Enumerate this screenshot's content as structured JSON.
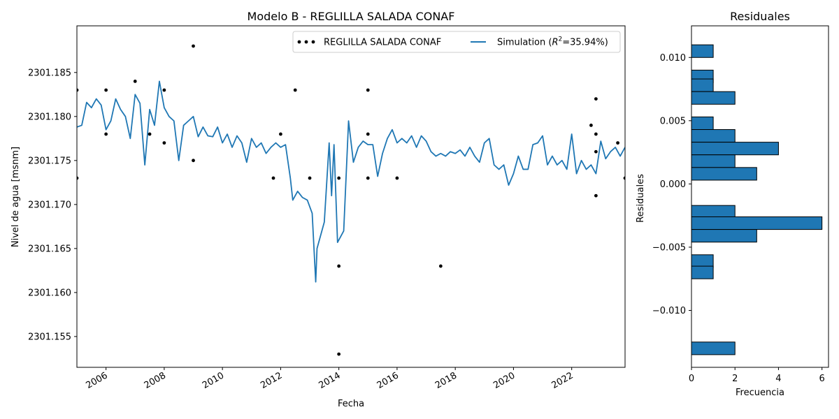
{
  "chart_data": [
    {
      "type": "line",
      "title": "Modelo B - REGLILLA SALADA CONAF",
      "xlabel": "Fecha",
      "ylabel": "Nivel de agua [msnm]",
      "xlim": [
        "2005-01-01",
        "2023-11-01"
      ],
      "ylim": [
        2301.1515,
        2301.1903
      ],
      "x_ticks": [
        "2006",
        "2008",
        "2010",
        "2012",
        "2014",
        "2016",
        "2018",
        "2020",
        "2022"
      ],
      "y_ticks": [
        "2301.155",
        "2301.160",
        "2301.165",
        "2301.170",
        "2301.175",
        "2301.180",
        "2301.185"
      ],
      "legend": {
        "placement": "top-right",
        "entries": [
          {
            "label": "REGLILLA SALADA CONAF",
            "marker": "dot",
            "color": "#000000"
          },
          {
            "label_prefix": "Simulation (",
            "label_math": "R",
            "label_sup": "2",
            "label_suffix": "=35.94%)",
            "color": "#1f77b4"
          }
        ]
      },
      "series": [
        {
          "name": "REGLILLA SALADA CONAF",
          "kind": "scatter",
          "color": "#000000",
          "points": [
            {
              "x": "2005-01-01",
              "y": 2301.183
            },
            {
              "x": "2005-01-01",
              "y": 2301.173
            },
            {
              "x": "2006-01-01",
              "y": 2301.183
            },
            {
              "x": "2006-01-01",
              "y": 2301.178
            },
            {
              "x": "2007-01-01",
              "y": 2301.184
            },
            {
              "x": "2007-07-01",
              "y": 2301.178
            },
            {
              "x": "2008-01-01",
              "y": 2301.183
            },
            {
              "x": "2008-01-01",
              "y": 2301.177
            },
            {
              "x": "2009-01-01",
              "y": 2301.188
            },
            {
              "x": "2009-01-01",
              "y": 2301.175
            },
            {
              "x": "2011-10-01",
              "y": 2301.173
            },
            {
              "x": "2012-01-01",
              "y": 2301.178
            },
            {
              "x": "2012-07-01",
              "y": 2301.183
            },
            {
              "x": "2013-01-01",
              "y": 2301.173
            },
            {
              "x": "2014-01-01",
              "y": 2301.173
            },
            {
              "x": "2014-01-01",
              "y": 2301.163
            },
            {
              "x": "2014-01-01",
              "y": 2301.153
            },
            {
              "x": "2015-01-01",
              "y": 2301.183
            },
            {
              "x": "2015-01-01",
              "y": 2301.178
            },
            {
              "x": "2015-01-01",
              "y": 2301.173
            },
            {
              "x": "2016-01-01",
              "y": 2301.173
            },
            {
              "x": "2017-07-01",
              "y": 2301.163
            },
            {
              "x": "2022-09-01",
              "y": 2301.179
            },
            {
              "x": "2022-11-01",
              "y": 2301.182
            },
            {
              "x": "2022-11-01",
              "y": 2301.178
            },
            {
              "x": "2022-11-01",
              "y": 2301.176
            },
            {
              "x": "2022-11-01",
              "y": 2301.171
            },
            {
              "x": "2023-08-01",
              "y": 2301.177
            },
            {
              "x": "2023-11-01",
              "y": 2301.173
            }
          ]
        },
        {
          "name": "Simulation",
          "kind": "line",
          "color": "#1f77b4",
          "points": [
            [
              "2005-01-01",
              2301.1788
            ],
            [
              "2005-03-01",
              2301.179
            ],
            [
              "2005-05-01",
              2301.1816
            ],
            [
              "2005-07-01",
              2301.181
            ],
            [
              "2005-09-01",
              2301.182
            ],
            [
              "2005-11-01",
              2301.1813
            ],
            [
              "2006-01-01",
              2301.1785
            ],
            [
              "2006-03-01",
              2301.1795
            ],
            [
              "2006-05-01",
              2301.182
            ],
            [
              "2006-07-01",
              2301.1808
            ],
            [
              "2006-09-01",
              2301.18
            ],
            [
              "2006-11-01",
              2301.1775
            ],
            [
              "2007-01-01",
              2301.1825
            ],
            [
              "2007-03-01",
              2301.1815
            ],
            [
              "2007-05-01",
              2301.1745
            ],
            [
              "2007-07-01",
              2301.1808
            ],
            [
              "2007-09-01",
              2301.179
            ],
            [
              "2007-11-01",
              2301.184
            ],
            [
              "2008-01-01",
              2301.181
            ],
            [
              "2008-03-01",
              2301.18
            ],
            [
              "2008-05-01",
              2301.1795
            ],
            [
              "2008-07-01",
              2301.175
            ],
            [
              "2008-09-01",
              2301.179
            ],
            [
              "2008-11-01",
              2301.1795
            ],
            [
              "2009-01-01",
              2301.18
            ],
            [
              "2009-03-01",
              2301.1777
            ],
            [
              "2009-05-01",
              2301.1788
            ],
            [
              "2009-07-01",
              2301.1778
            ],
            [
              "2009-09-01",
              2301.1777
            ],
            [
              "2009-11-01",
              2301.1788
            ],
            [
              "2010-01-01",
              2301.177
            ],
            [
              "2010-03-01",
              2301.178
            ],
            [
              "2010-05-01",
              2301.1765
            ],
            [
              "2010-07-01",
              2301.1778
            ],
            [
              "2010-09-01",
              2301.177
            ],
            [
              "2010-11-01",
              2301.1748
            ],
            [
              "2011-01-01",
              2301.1775
            ],
            [
              "2011-03-01",
              2301.1765
            ],
            [
              "2011-05-01",
              2301.177
            ],
            [
              "2011-07-01",
              2301.1758
            ],
            [
              "2011-09-01",
              2301.1765
            ],
            [
              "2011-11-01",
              2301.177
            ],
            [
              "2012-01-01",
              2301.1765
            ],
            [
              "2012-03-01",
              2301.1768
            ],
            [
              "2012-05-01",
              2301.173
            ],
            [
              "2012-06-01",
              2301.1705
            ],
            [
              "2012-08-01",
              2301.1715
            ],
            [
              "2012-10-01",
              2301.1708
            ],
            [
              "2012-12-01",
              2301.1705
            ],
            [
              "2013-02-01",
              2301.169
            ],
            [
              "2013-03-15",
              2301.1612
            ],
            [
              "2013-04-01",
              2301.165
            ],
            [
              "2013-07-01",
              2301.168
            ],
            [
              "2013-09-01",
              2301.177
            ],
            [
              "2013-10-01",
              2301.171
            ],
            [
              "2013-11-01",
              2301.1768
            ],
            [
              "2013-12-15",
              2301.1657
            ],
            [
              "2014-03-01",
              2301.167
            ],
            [
              "2014-05-01",
              2301.1795
            ],
            [
              "2014-07-01",
              2301.1748
            ],
            [
              "2014-09-01",
              2301.1765
            ],
            [
              "2014-11-01",
              2301.1772
            ],
            [
              "2015-01-01",
              2301.1768
            ],
            [
              "2015-03-01",
              2301.1768
            ],
            [
              "2015-05-01",
              2301.1732
            ],
            [
              "2015-07-01",
              2301.1758
            ],
            [
              "2015-09-01",
              2301.1775
            ],
            [
              "2015-11-01",
              2301.1785
            ],
            [
              "2016-01-01",
              2301.177
            ],
            [
              "2016-03-01",
              2301.1775
            ],
            [
              "2016-05-01",
              2301.177
            ],
            [
              "2016-07-01",
              2301.1778
            ],
            [
              "2016-09-01",
              2301.1765
            ],
            [
              "2016-11-01",
              2301.1778
            ],
            [
              "2017-01-01",
              2301.1772
            ],
            [
              "2017-03-01",
              2301.176
            ],
            [
              "2017-05-01",
              2301.1755
            ],
            [
              "2017-07-01",
              2301.1758
            ],
            [
              "2017-09-01",
              2301.1755
            ],
            [
              "2017-11-01",
              2301.176
            ],
            [
              "2018-01-01",
              2301.1758
            ],
            [
              "2018-03-01",
              2301.1762
            ],
            [
              "2018-05-01",
              2301.1755
            ],
            [
              "2018-07-01",
              2301.1765
            ],
            [
              "2018-09-01",
              2301.1755
            ],
            [
              "2018-11-01",
              2301.1748
            ],
            [
              "2019-01-01",
              2301.177
            ],
            [
              "2019-03-01",
              2301.1775
            ],
            [
              "2019-05-01",
              2301.1745
            ],
            [
              "2019-07-01",
              2301.174
            ],
            [
              "2019-09-01",
              2301.1745
            ],
            [
              "2019-11-01",
              2301.1722
            ],
            [
              "2020-01-01",
              2301.1735
            ],
            [
              "2020-03-01",
              2301.1755
            ],
            [
              "2020-05-01",
              2301.174
            ],
            [
              "2020-07-01",
              2301.174
            ],
            [
              "2020-09-01",
              2301.1768
            ],
            [
              "2020-11-01",
              2301.177
            ],
            [
              "2021-01-01",
              2301.1778
            ],
            [
              "2021-03-01",
              2301.1745
            ],
            [
              "2021-05-01",
              2301.1755
            ],
            [
              "2021-07-01",
              2301.1745
            ],
            [
              "2021-09-01",
              2301.175
            ],
            [
              "2021-11-01",
              2301.174
            ],
            [
              "2022-01-01",
              2301.178
            ],
            [
              "2022-03-01",
              2301.1735
            ],
            [
              "2022-05-01",
              2301.175
            ],
            [
              "2022-07-01",
              2301.174
            ],
            [
              "2022-09-01",
              2301.1745
            ],
            [
              "2022-11-01",
              2301.1735
            ],
            [
              "2023-01-01",
              2301.1772
            ],
            [
              "2023-03-01",
              2301.1752
            ],
            [
              "2023-05-01",
              2301.176
            ],
            [
              "2023-07-01",
              2301.1765
            ],
            [
              "2023-09-01",
              2301.1755
            ],
            [
              "2023-11-01",
              2301.1765
            ]
          ]
        }
      ]
    },
    {
      "type": "bar",
      "orientation": "horizontal",
      "title": "Residuales",
      "xlabel": "Frecuencia",
      "ylabel": "Residuales",
      "xlim": [
        0,
        6.3
      ],
      "ylim": [
        -0.0145,
        0.0125
      ],
      "x_ticks": [
        "0",
        "2",
        "4",
        "6"
      ],
      "y_ticks": [
        {
          "value": 0.01,
          "label": "0.010"
        },
        {
          "value": 0.005,
          "label": "0.005"
        },
        {
          "value": 0.0,
          "label": "0.000"
        },
        {
          "value": -0.005,
          "label": "−0.005"
        },
        {
          "value": -0.01,
          "label": "−0.010"
        }
      ],
      "bar_color": "#1f77b4",
      "bins": [
        {
          "from": 0.01,
          "to": 0.011,
          "count": 1
        },
        {
          "from": 0.008,
          "to": 0.009,
          "count": 1
        },
        {
          "from": 0.0073,
          "to": 0.0083,
          "count": 1
        },
        {
          "from": 0.0063,
          "to": 0.0073,
          "count": 2
        },
        {
          "from": 0.0043,
          "to": 0.0053,
          "count": 1
        },
        {
          "from": 0.0033,
          "to": 0.0043,
          "count": 2
        },
        {
          "from": 0.0023,
          "to": 0.0033,
          "count": 4
        },
        {
          "from": 0.0013,
          "to": 0.0023,
          "count": 2
        },
        {
          "from": 0.0003,
          "to": 0.0013,
          "count": 3
        },
        {
          "from": -0.0027,
          "to": -0.0017,
          "count": 2
        },
        {
          "from": -0.0036,
          "to": -0.0026,
          "count": 6
        },
        {
          "from": -0.0046,
          "to": -0.0036,
          "count": 3
        },
        {
          "from": -0.0066,
          "to": -0.0056,
          "count": 1
        },
        {
          "from": -0.0075,
          "to": -0.0065,
          "count": 1
        },
        {
          "from": -0.0135,
          "to": -0.0125,
          "count": 2
        }
      ]
    }
  ]
}
